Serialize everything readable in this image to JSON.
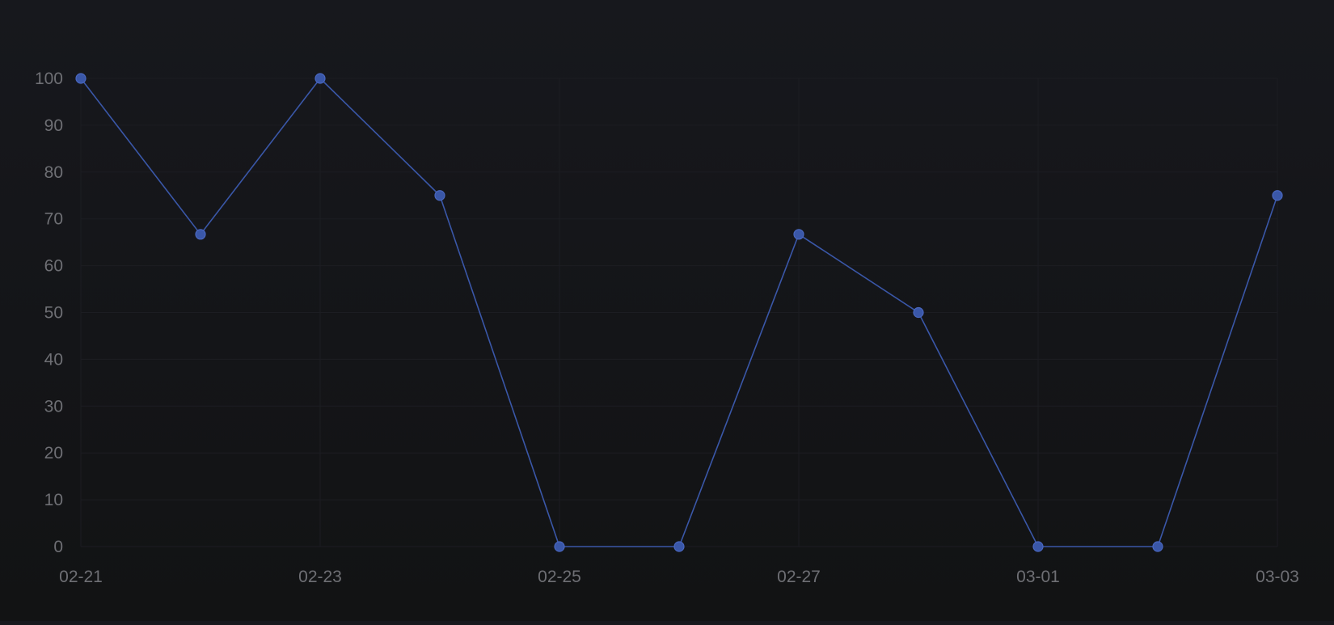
{
  "chart_data": {
    "type": "line",
    "x": [
      "02-21",
      "02-22",
      "02-23",
      "02-24",
      "02-25",
      "02-26",
      "02-27",
      "02-28",
      "03-01",
      "03-02",
      "03-03"
    ],
    "x_tick_labels": [
      "02-21",
      "02-23",
      "02-25",
      "02-27",
      "03-01",
      "03-03"
    ],
    "series": [
      {
        "values": [
          100,
          66.7,
          100,
          75,
          0,
          0,
          66.7,
          50,
          0,
          0,
          75
        ]
      }
    ],
    "ylim": [
      0,
      100
    ],
    "y_ticks": [
      0,
      10,
      20,
      30,
      40,
      50,
      60,
      70,
      80,
      90,
      100
    ],
    "grid": true,
    "legend": "none",
    "colors": {
      "line": "#3a57a8",
      "point_fill": "#3a57a8",
      "point_stroke": "#4a68c0",
      "tick_text": "#6e6f74",
      "grid": "#1c1d22"
    }
  }
}
